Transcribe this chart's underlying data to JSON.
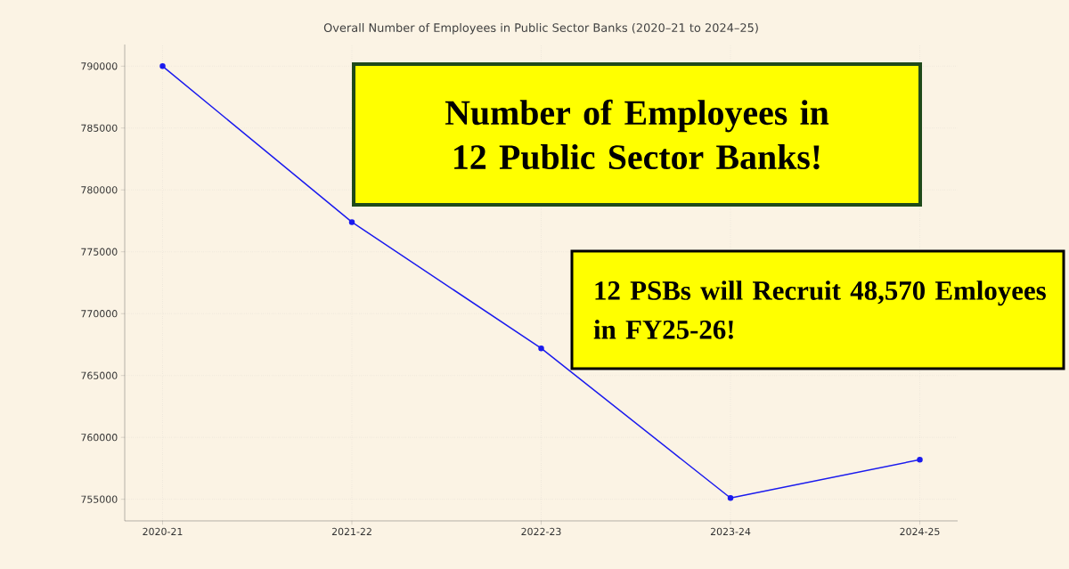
{
  "chart_data": {
    "type": "line",
    "title": "Overall Number of Employees in Public Sector Banks (2020–21 to 2024–25)",
    "categories": [
      "2020-21",
      "2021-22",
      "2022-23",
      "2023-24",
      "2024-25"
    ],
    "values": [
      790000,
      777400,
      767200,
      755100,
      758200
    ],
    "color": "#1a1aee",
    "marker": "circle",
    "grid": true,
    "ylim": [
      753250,
      791750
    ],
    "yticks": [
      755000,
      760000,
      765000,
      770000,
      775000,
      780000,
      785000,
      790000
    ],
    "annotations": [
      "Number of Employees in 12 Public Sector Banks!",
      "12 PSBs will Recruit 48,570 Emloyees in FY25-26!"
    ]
  }
}
